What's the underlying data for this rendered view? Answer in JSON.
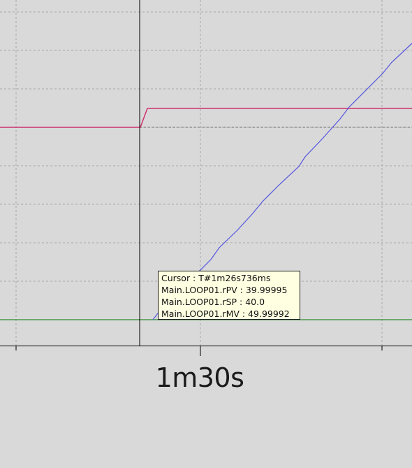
{
  "trend": {
    "x_tick_label": "1m30s",
    "colors": {
      "background": "#d9d9d9",
      "grid": "#a0a0a0",
      "cursor": "#000000",
      "setpoint": "#d0306f",
      "process_value": "#5555e0",
      "manipulated_value": "#2e8b2e"
    },
    "tooltip": {
      "cursor": "Cursor : T#1m26s736ms",
      "rpv": "Main.LOOP01.rPV : 39.99995",
      "rsp": "Main.LOOP01.rSP : 40.0",
      "rmv": "Main.LOOP01.rMV : 49.99992"
    }
  }
}
